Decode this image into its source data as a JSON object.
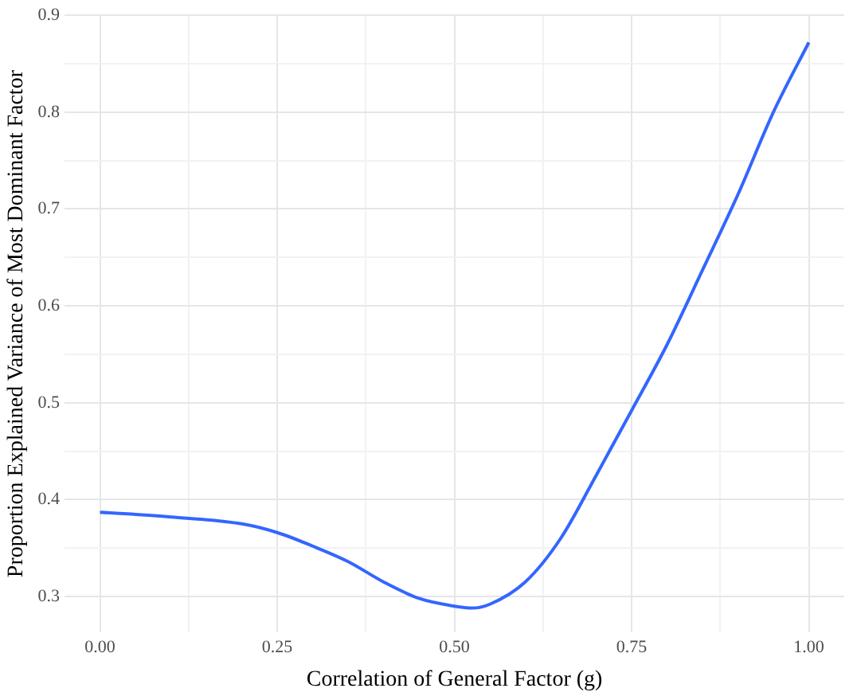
{
  "chart_data": {
    "type": "line",
    "xlabel": "Correlation of General Factor (g)",
    "ylabel": "Proportion Explained Variance of Most Dominant Factor",
    "x": [
      0,
      0.1,
      0.2,
      0.25,
      0.3,
      0.35,
      0.4,
      0.45,
      0.5,
      0.525,
      0.55,
      0.6,
      0.65,
      0.7,
      0.75,
      0.8,
      0.85,
      0.9,
      0.95,
      1.0
    ],
    "series": [
      {
        "color": "#3366ff",
        "values": [
          0.387,
          0.382,
          0.375,
          0.366,
          0.352,
          0.336,
          0.315,
          0.298,
          0.29,
          0.288,
          0.292,
          0.315,
          0.36,
          0.425,
          0.492,
          0.56,
          0.637,
          0.715,
          0.8,
          0.872
        ]
      }
    ],
    "xlim": [
      -0.05,
      1.05
    ],
    "ylim": [
      0.263,
      0.9
    ],
    "xticks": [
      {
        "value": 0,
        "label": "0.00"
      },
      {
        "value": 0.125,
        "label": null
      },
      {
        "value": 0.25,
        "label": "0.25"
      },
      {
        "value": 0.375,
        "label": null
      },
      {
        "value": 0.5,
        "label": "0.50"
      },
      {
        "value": 0.625,
        "label": null
      },
      {
        "value": 0.75,
        "label": "0.75"
      },
      {
        "value": 0.875,
        "label": null
      },
      {
        "value": 1,
        "label": "1.00"
      }
    ],
    "yticks": [
      0.3,
      {
        "value": 0.35,
        "label": null
      },
      0.4,
      {
        "value": 0.45,
        "label": null
      },
      0.5,
      {
        "value": 0.55,
        "label": null
      },
      0.6,
      {
        "value": 0.65,
        "label": null
      },
      0.7,
      {
        "value": 0.75,
        "label": null
      },
      0.8,
      {
        "value": 0.85,
        "label": null
      },
      0.9
    ],
    "grid": true,
    "legend": false,
    "marker": "none",
    "line_style": "solid"
  }
}
